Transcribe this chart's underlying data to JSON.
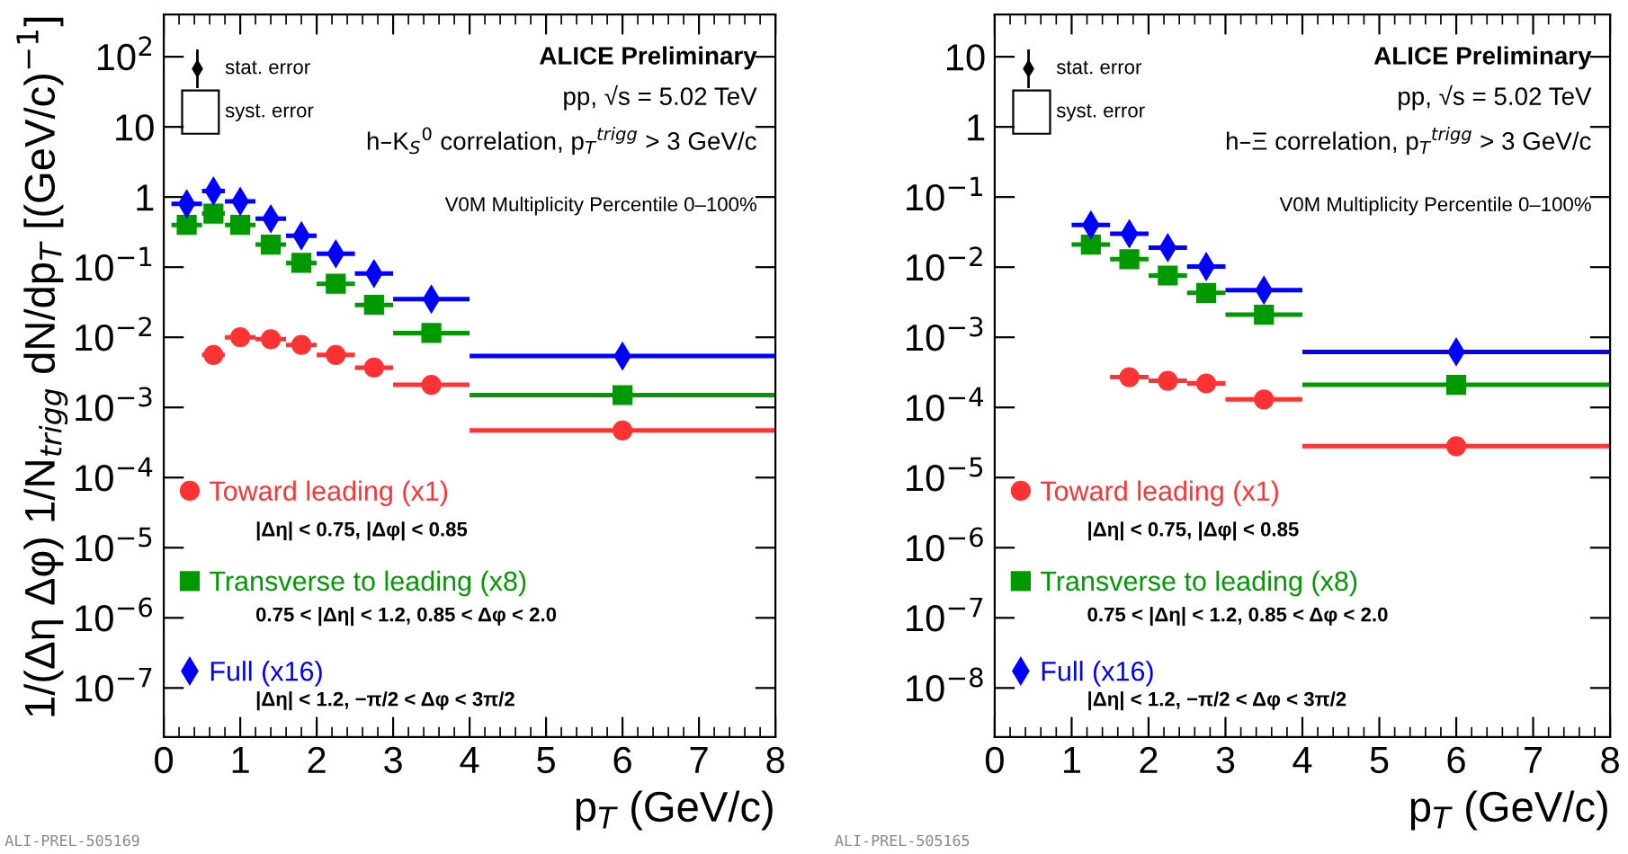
{
  "chart_data": [
    {
      "type": "scatter",
      "ylabel": "1/(Δη Δφ) 1/N$_{trigg}$ dN/dp$_{T}$ [(GeV/c)$^{−1}$]",
      "xlabel": "p$_{T}$ (GeV/c)",
      "log": "y",
      "xlim": [
        0,
        8
      ],
      "ylim": [
        2e-08,
        400
      ],
      "xticks": [
        0,
        1,
        2,
        3,
        4,
        5,
        6,
        7,
        8
      ],
      "yticks": [
        {
          "value": 1e-07,
          "label": "10$^{−7}$"
        },
        {
          "value": 1e-06,
          "label": "10$^{−6}$"
        },
        {
          "value": 1e-05,
          "label": "10$^{−5}$"
        },
        {
          "value": 0.0001,
          "label": "10$^{−4}$"
        },
        {
          "value": 0.001,
          "label": "10$^{−3}$"
        },
        {
          "value": 0.01,
          "label": "10$^{−2}$"
        },
        {
          "value": 0.1,
          "label": "10$^{−1}$"
        },
        1,
        10,
        {
          "value": 100,
          "label": "10$^{2}$"
        }
      ],
      "legend": "bottom left",
      "grid": false,
      "series": [
        {
          "name": "Toward leading (x1)",
          "color": "#ff3333",
          "marker": "circle",
          "x": [
            0.65,
            1.0,
            1.4,
            1.8,
            2.25,
            2.75,
            3.5,
            6.0
          ],
          "xerrors": [
            0.15,
            0.2,
            0.2,
            0.2,
            0.25,
            0.25,
            0.5,
            2
          ],
          "values": [
            0.0056,
            0.01,
            0.0094,
            0.0078,
            0.0056,
            0.0037,
            0.0021,
            0.00047
          ]
        },
        {
          "name": "Transverse to leading (x8)",
          "color": "#009900",
          "marker": "square",
          "x": [
            0.3,
            0.65,
            1.0,
            1.4,
            1.8,
            2.25,
            2.75,
            3.5,
            6.0
          ],
          "xerrors": [
            0.2,
            0.15,
            0.2,
            0.2,
            0.2,
            0.25,
            0.25,
            0.5,
            2
          ],
          "values": [
            0.4,
            0.58,
            0.4,
            0.21,
            0.115,
            0.058,
            0.029,
            0.0115,
            0.0015
          ]
        },
        {
          "name": "Full (x16)",
          "color": "#0000ff",
          "marker": "diamond",
          "x": [
            0.3,
            0.65,
            1.0,
            1.4,
            1.8,
            2.25,
            2.75,
            3.5,
            6.0
          ],
          "xerrors": [
            0.2,
            0.15,
            0.2,
            0.2,
            0.2,
            0.25,
            0.25,
            0.5,
            2
          ],
          "values": [
            0.8,
            1.22,
            0.87,
            0.49,
            0.28,
            0.155,
            0.081,
            0.035,
            0.0054
          ]
        }
      ],
      "annotations": [
        "stat. error",
        "syst. error",
        "ALICE Preliminary",
        "pp, √s = 5.02 TeV",
        "h–K$_{S}$$^{0}$ correlation, p$_{T}$$^{trigg}$ > 3 GeV/c",
        "V0M Multiplicity Percentile 0–100%",
        "|Δη| < 0.75, |Δφ| < 0.85",
        "0.75 < |Δη| < 1.2, 0.85 < Δφ < 2.0",
        "|Δη| < 1.2, −π/2 < Δφ < 3π/2",
        "ALI-PREL-505169"
      ]
    },
    {
      "type": "scatter",
      "xlabel": "p$_{T}$ (GeV/c)",
      "log": "y",
      "xlim": [
        0,
        8
      ],
      "ylim": [
        2e-09,
        40
      ],
      "xticks": [
        0,
        1,
        2,
        3,
        4,
        5,
        6,
        7,
        8
      ],
      "yticks": [
        {
          "value": 1e-08,
          "label": "10$^{−8}$"
        },
        {
          "value": 1e-07,
          "label": "10$^{−7}$"
        },
        {
          "value": 1e-06,
          "label": "10$^{−6}$"
        },
        {
          "value": 1e-05,
          "label": "10$^{−5}$"
        },
        {
          "value": 0.0001,
          "label": "10$^{−4}$"
        },
        {
          "value": 0.001,
          "label": "10$^{−3}$"
        },
        {
          "value": 0.01,
          "label": "10$^{−2}$"
        },
        {
          "value": 0.1,
          "label": "10$^{−1}$"
        },
        1,
        10
      ],
      "legend": "bottom left",
      "grid": false,
      "series": [
        {
          "name": "Toward leading (x1)",
          "color": "#ff3333",
          "marker": "circle",
          "x": [
            1.75,
            2.25,
            2.75,
            3.5,
            6.0
          ],
          "xerrors": [
            0.25,
            0.25,
            0.25,
            0.5,
            2
          ],
          "values": [
            0.00027,
            0.00024,
            0.00022,
            0.00013,
            2.8e-05
          ]
        },
        {
          "name": "Transverse to leading (x8)",
          "color": "#009900",
          "marker": "square",
          "x": [
            1.25,
            1.75,
            2.25,
            2.75,
            3.5,
            6.0
          ],
          "xerrors": [
            0.25,
            0.25,
            0.25,
            0.25,
            0.5,
            2
          ],
          "values": [
            0.021,
            0.013,
            0.0076,
            0.0043,
            0.0021,
            0.00021
          ]
        },
        {
          "name": "Full (x16)",
          "color": "#0000ff",
          "marker": "diamond",
          "x": [
            1.25,
            1.75,
            2.25,
            2.75,
            3.5,
            6.0
          ],
          "xerrors": [
            0.25,
            0.25,
            0.25,
            0.25,
            0.5,
            2
          ],
          "values": [
            0.04,
            0.03,
            0.019,
            0.0102,
            0.0047,
            0.00062
          ]
        }
      ],
      "annotations": [
        "stat. error",
        "syst. error",
        "ALICE Preliminary",
        "pp, √s = 5.02 TeV",
        "h–Ξ correlation, p$_{T}$$^{trigg}$ > 3 GeV/c",
        "V0M Multiplicity Percentile 0–100%",
        "|Δη| < 0.75, |Δφ| < 0.85",
        "0.75 < |Δη| < 1.2, 0.85 < Δφ < 2.0",
        "|Δη| < 1.2, −π/2 < Δφ < 3π/2",
        "ALI-PREL-505165"
      ]
    }
  ]
}
